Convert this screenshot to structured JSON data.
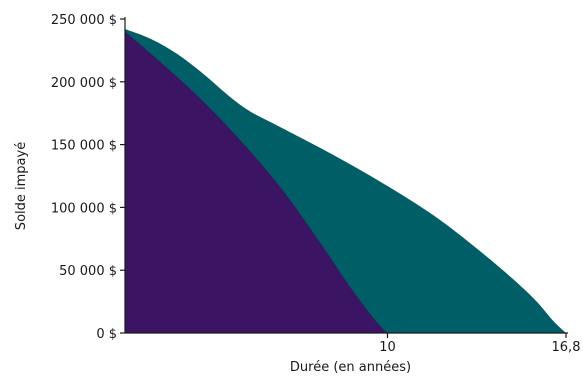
{
  "chart_data": {
    "type": "area",
    "title": "",
    "xlabel": "Durée (en années)",
    "ylabel": "Solde impayé",
    "xlim": [
      0,
      16.8
    ],
    "ylim": [
      0,
      250000
    ],
    "x_ticks": [
      {
        "value": 10,
        "label": "10"
      },
      {
        "value": 16.8,
        "label": "16,8"
      }
    ],
    "y_ticks": [
      {
        "value": 0,
        "label": "0 $"
      },
      {
        "value": 50000,
        "label": "50 000 $"
      },
      {
        "value": 100000,
        "label": "100 000 $"
      },
      {
        "value": 150000,
        "label": "150 000 $"
      },
      {
        "value": 200000,
        "label": "200 000 $"
      },
      {
        "value": 250000,
        "label": "250 000 $"
      }
    ],
    "series": [
      {
        "color": "#005f66",
        "x": [
          0,
          1.0,
          2.0,
          3.0,
          4.0,
          4.8,
          6,
          8,
          10,
          12,
          14,
          15.5,
          16.3,
          16.8
        ],
        "values": [
          242000,
          234000,
          222000,
          206000,
          188000,
          176000,
          163000,
          141000,
          117000,
          90000,
          57000,
          29000,
          10000,
          0
        ]
      },
      {
        "color": "#3b1463",
        "x": [
          0,
          1.5,
          3,
          4.5,
          6,
          7.5,
          8.5,
          9.5,
          10
        ],
        "values": [
          240000,
          213000,
          184000,
          151000,
          114000,
          70000,
          39000,
          11000,
          0
        ]
      }
    ]
  }
}
